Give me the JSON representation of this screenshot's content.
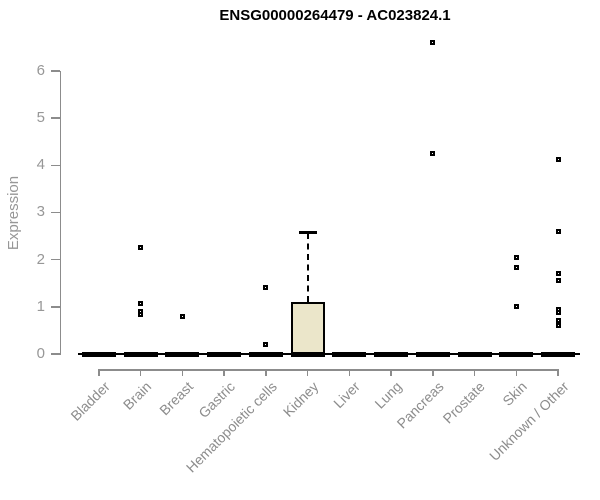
{
  "chart_data": {
    "type": "box",
    "title": "ENSG00000264479 - AC023824.1",
    "ylabel": "Expression",
    "xlabel": "",
    "ylim": [
      0,
      6
    ],
    "yticks": [
      0,
      1,
      2,
      3,
      4,
      5,
      6
    ],
    "grid": false,
    "legend": "none",
    "point_marker": "open-square",
    "categories": [
      "Bladder",
      "Brain",
      "Breast",
      "Gastric",
      "Hematopoietic cells",
      "Kidney",
      "Liver",
      "Lung",
      "Pancreas",
      "Prostate",
      "Skin",
      "Unknown / Other"
    ],
    "boxes": [
      {
        "category": "Bladder",
        "whisker_low": 0,
        "q1": 0,
        "median": 0,
        "q3": 0,
        "whisker_high": 0,
        "outliers": []
      },
      {
        "category": "Brain",
        "whisker_low": 0,
        "q1": 0,
        "median": 0,
        "q3": 0,
        "whisker_high": 0,
        "outliers": [
          2.25,
          1.08,
          0.91,
          0.83
        ]
      },
      {
        "category": "Breast",
        "whisker_low": 0,
        "q1": 0,
        "median": 0,
        "q3": 0,
        "whisker_high": 0,
        "outliers": [
          0.8
        ]
      },
      {
        "category": "Gastric",
        "whisker_low": 0,
        "q1": 0,
        "median": 0,
        "q3": 0,
        "whisker_high": 0,
        "outliers": []
      },
      {
        "category": "Hematopoietic cells",
        "whisker_low": 0,
        "q1": 0,
        "median": 0,
        "q3": 0,
        "whisker_high": 0,
        "outliers": [
          1.4,
          0.2
        ]
      },
      {
        "category": "Kidney",
        "whisker_low": 0,
        "q1": 0,
        "median": 0,
        "q3": 1.1,
        "whisker_high": 2.57,
        "outliers": []
      },
      {
        "category": "Liver",
        "whisker_low": 0,
        "q1": 0,
        "median": 0,
        "q3": 0,
        "whisker_high": 0,
        "outliers": []
      },
      {
        "category": "Lung",
        "whisker_low": 0,
        "q1": 0,
        "median": 0,
        "q3": 0,
        "whisker_high": 0,
        "outliers": []
      },
      {
        "category": "Pancreas",
        "whisker_low": 0,
        "q1": 0,
        "median": 0,
        "q3": 0,
        "whisker_high": 0,
        "outliers": [
          6.6,
          4.25
        ]
      },
      {
        "category": "Prostate",
        "whisker_low": 0,
        "q1": 0,
        "median": 0,
        "q3": 0,
        "whisker_high": 0,
        "outliers": []
      },
      {
        "category": "Skin",
        "whisker_low": 0,
        "q1": 0,
        "median": 0,
        "q3": 0,
        "whisker_high": 0,
        "outliers": [
          2.04,
          1.84,
          1.0
        ]
      },
      {
        "category": "Unknown / Other",
        "whisker_low": 0,
        "q1": 0,
        "median": 0,
        "q3": 0,
        "whisker_high": 0,
        "outliers": [
          4.13,
          2.6,
          1.7,
          1.55,
          0.95,
          0.87,
          0.72,
          0.61
        ]
      }
    ],
    "colors": {
      "box_fill": "#ebe6ca",
      "box_border": "#000000",
      "marker": "#000000",
      "axis_line": "#8c8c8c",
      "axis_text": "#979797",
      "title_text": "#000000",
      "background": "#ffffff"
    }
  }
}
